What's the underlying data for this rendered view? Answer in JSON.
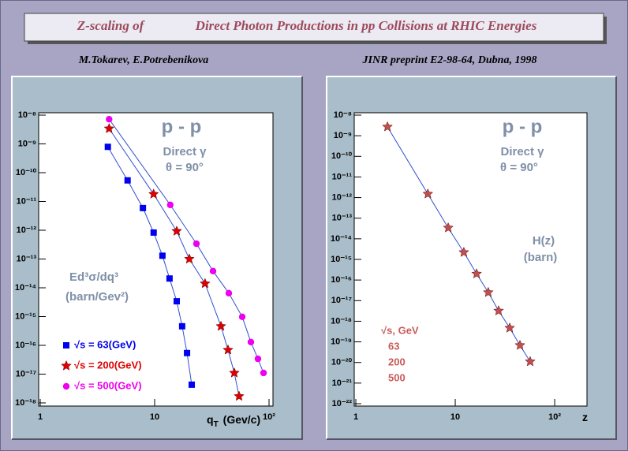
{
  "header": {
    "title": "Z-scaling of",
    "title_2": "Direct Photon Productions in pp Collisions at RHIC Energies",
    "authors": "M.Tokarev, E.Potrebenikova",
    "preprint": "JINR preprint E2-98-64, Dubna, 1998"
  },
  "chart_data": [
    {
      "type": "scatter",
      "log_x": true,
      "log_y": true,
      "connect": true,
      "line_color": "#3050d0",
      "xlim": [
        1,
        110
      ],
      "ylim": [
        1e-18,
        1e-08
      ],
      "xticks": [
        1,
        10,
        {
          "value": 100,
          "label": "10²"
        }
      ],
      "yticks": [
        {
          "value": 1e-08,
          "label": "10⁻⁸"
        },
        {
          "value": 1e-09,
          "label": "10⁻⁹"
        },
        {
          "value": 1e-10,
          "label": "10⁻¹⁰"
        },
        {
          "value": 1e-11,
          "label": "10⁻¹¹"
        },
        {
          "value": 1e-12,
          "label": "10⁻¹²"
        },
        {
          "value": 1e-13,
          "label": "10⁻¹³"
        },
        {
          "value": 1e-14,
          "label": "10⁻¹⁴"
        },
        {
          "value": 1e-15,
          "label": "10⁻¹⁵"
        },
        {
          "value": 1e-16,
          "label": "10⁻¹⁶"
        },
        {
          "value": 1e-17,
          "label": "10⁻¹⁷"
        },
        {
          "value": 1e-18,
          "label": "10⁻¹⁸"
        }
      ],
      "x_label": "q",
      "x_label_sub": "T",
      "x_label_unit": "(Gev/c)",
      "y_label": "Ed³σ/dq³",
      "y_label_unit": "(barn/Gev²)",
      "annotations": [
        "p - p",
        "Direct γ",
        "θ = 90°"
      ],
      "legend": "bottom left",
      "series": [
        {
          "name": "√s = 63(GeV)",
          "color": "#0000ee",
          "marker": "square",
          "x": [
            3.9,
            5.8,
            7.9,
            9.8,
            11.7,
            13.5,
            15.6,
            17.4,
            19.2,
            21.1
          ],
          "values": [
            7.9e-10,
            5.4e-11,
            5.9e-12,
            8.3e-13,
            1.3e-13,
            2.1e-14,
            3.4e-15,
            4.6e-16,
            5.4e-17,
            4.3e-18
          ]
        },
        {
          "name": "√s = 200(GeV)",
          "color": "#e00000",
          "marker": "star",
          "x": [
            4.0,
            9.8,
            15.6,
            20.1,
            27.6,
            38,
            43.8,
            49.7,
            54.7
          ],
          "values": [
            3.4e-09,
            1.8e-11,
            9.3e-13,
            1e-13,
            1.4e-14,
            4.6e-16,
            6.9e-17,
            1.1e-17,
            1.7e-18
          ]
        },
        {
          "name": "√s = 500(GeV)",
          "color": "#ee00ee",
          "marker": "circle",
          "x": [
            4.0,
            13.7,
            23.2,
            32.4,
            44.5,
            58.3,
            69.4,
            80,
            89.5
          ],
          "values": [
            7.2e-09,
            7.6e-12,
            3.4e-13,
            3.8e-14,
            6.5e-15,
            9.8e-16,
            1.3e-16,
            3.4e-17,
            1.1e-17
          ]
        }
      ]
    },
    {
      "type": "scatter",
      "log_x": true,
      "log_y": true,
      "connect": true,
      "line_color": "#3050d0",
      "xlim": [
        1,
        200
      ],
      "ylim": [
        1e-22,
        1e-08
      ],
      "xticks": [
        1,
        10,
        {
          "value": 100,
          "label": "10²"
        }
      ],
      "yticks": [
        {
          "value": 1e-08,
          "label": "10⁻⁸"
        },
        {
          "value": 1e-09,
          "label": "10⁻⁹"
        },
        {
          "value": 1e-10,
          "label": "10⁻¹⁰"
        },
        {
          "value": 1e-11,
          "label": "10⁻¹¹"
        },
        {
          "value": 1e-12,
          "label": "10⁻¹²"
        },
        {
          "value": 1e-13,
          "label": "10⁻¹³"
        },
        {
          "value": 1e-14,
          "label": "10⁻¹⁴"
        },
        {
          "value": 1e-15,
          "label": "10⁻¹⁵"
        },
        {
          "value": 1e-16,
          "label": "10⁻¹⁶"
        },
        {
          "value": 1e-17,
          "label": "10⁻¹⁷"
        },
        {
          "value": 1e-18,
          "label": "10⁻¹⁸"
        },
        {
          "value": 1e-19,
          "label": "10⁻¹⁹"
        },
        {
          "value": 1e-20,
          "label": "10⁻²⁰"
        },
        {
          "value": 1e-21,
          "label": "10⁻²¹"
        },
        {
          "value": 1e-22,
          "label": "10⁻²²"
        }
      ],
      "x_label": "z",
      "y_label": "H(z)",
      "y_label_unit": "(barn)",
      "annotations": [
        "p - p",
        "Direct γ",
        "θ = 90°"
      ],
      "legend_title": "√s, GeV",
      "legend_entries": [
        "63",
        "200",
        "500"
      ],
      "legend_color": "#c85a5a",
      "series": [
        {
          "color": "#c05050",
          "marker": "star",
          "x": [
            2.08,
            5.3,
            8.5,
            12.2,
            16.4,
            21.5,
            27.3,
            35.3,
            44.8,
            56.7
          ],
          "values": [
            2.7e-09,
            1.5e-12,
            3.4e-14,
            2.2e-15,
            2e-16,
            2.5e-17,
            3.2e-18,
            4.7e-19,
            6.8e-20,
            1.1e-20
          ]
        }
      ]
    }
  ]
}
